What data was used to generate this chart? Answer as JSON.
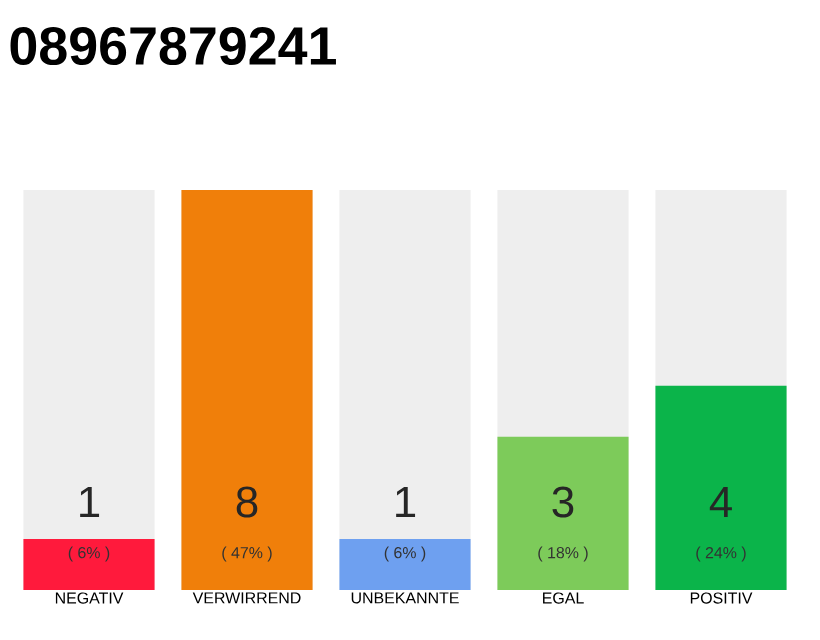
{
  "chart_data": {
    "type": "bar",
    "title": "08967879241",
    "categories": [
      "NEGATIV",
      "VERWIRREND",
      "UNBEKANNTE",
      "EGAL",
      "POSITIV"
    ],
    "values": [
      6,
      47,
      6,
      18,
      24
    ],
    "colors": [
      "#ff1a3c",
      "#f07f0a",
      "#6ea0f0",
      "#7dcb5a",
      "#0bb44a"
    ],
    "value_labels": [
      "( 6% )",
      "( 47% )",
      "( 6% )",
      "( 18% )",
      "( 24% )"
    ],
    "annotations": [
      "1",
      "8",
      "1",
      "3",
      "4"
    ]
  }
}
